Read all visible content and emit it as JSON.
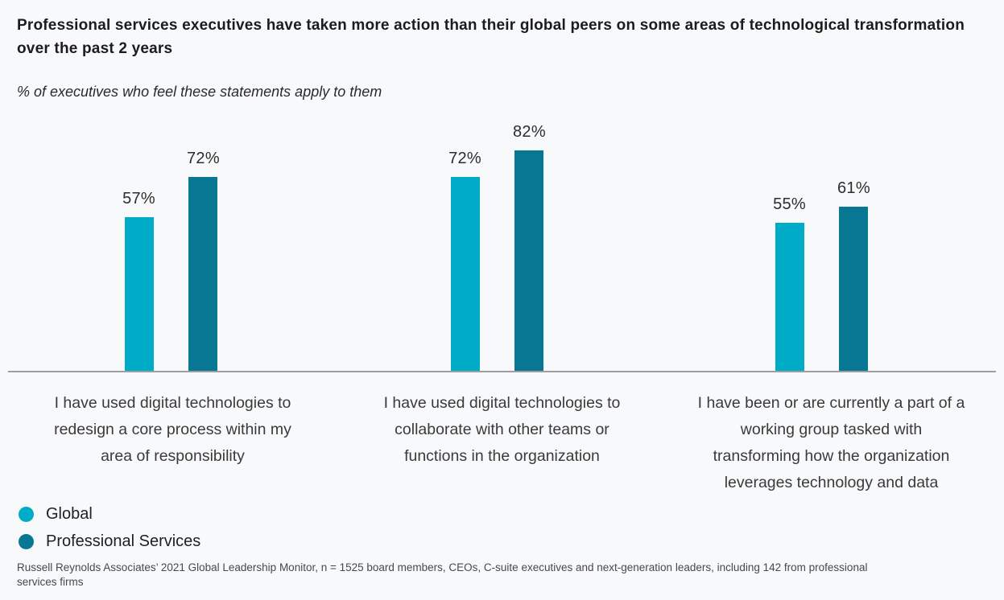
{
  "header": {
    "title": "Professional services executives have taken more action than their global peers on some areas of technological transformation over the past 2 years",
    "subtitle": "% of executives who feel these statements apply to them"
  },
  "chart_data": {
    "type": "bar",
    "unit": "%",
    "title": "Professional services executives have taken more action than their global peers on some areas of technological transformation over the past 2 years",
    "subtitle": "% of executives who feel these statements apply to them",
    "categories": [
      "I have used digital technologies to redesign a core process within my area of responsibility",
      "I have used digital technologies to collaborate with other teams or functions in the organization",
      "I have been or are currently a part of a working group tasked with transforming how the organization leverages technology and data"
    ],
    "series": [
      {
        "name": "Global",
        "color": "#00abc7",
        "values": [
          57,
          72,
          55
        ]
      },
      {
        "name": "Professional Services",
        "color": "#087793",
        "values": [
          72,
          82,
          61
        ]
      }
    ],
    "ylim": [
      0,
      100
    ],
    "grid": false,
    "legend_position": "bottom-left",
    "axis_line_color": "#9e9ea1",
    "background_color": "#f8f9fb"
  },
  "footer": {
    "source": "Russell Reynolds Associates’ 2021 Global Leadership Monitor, n = 1525 board members, CEOs, C-suite executives and next-generation leaders, including 142 from professional services firms"
  }
}
